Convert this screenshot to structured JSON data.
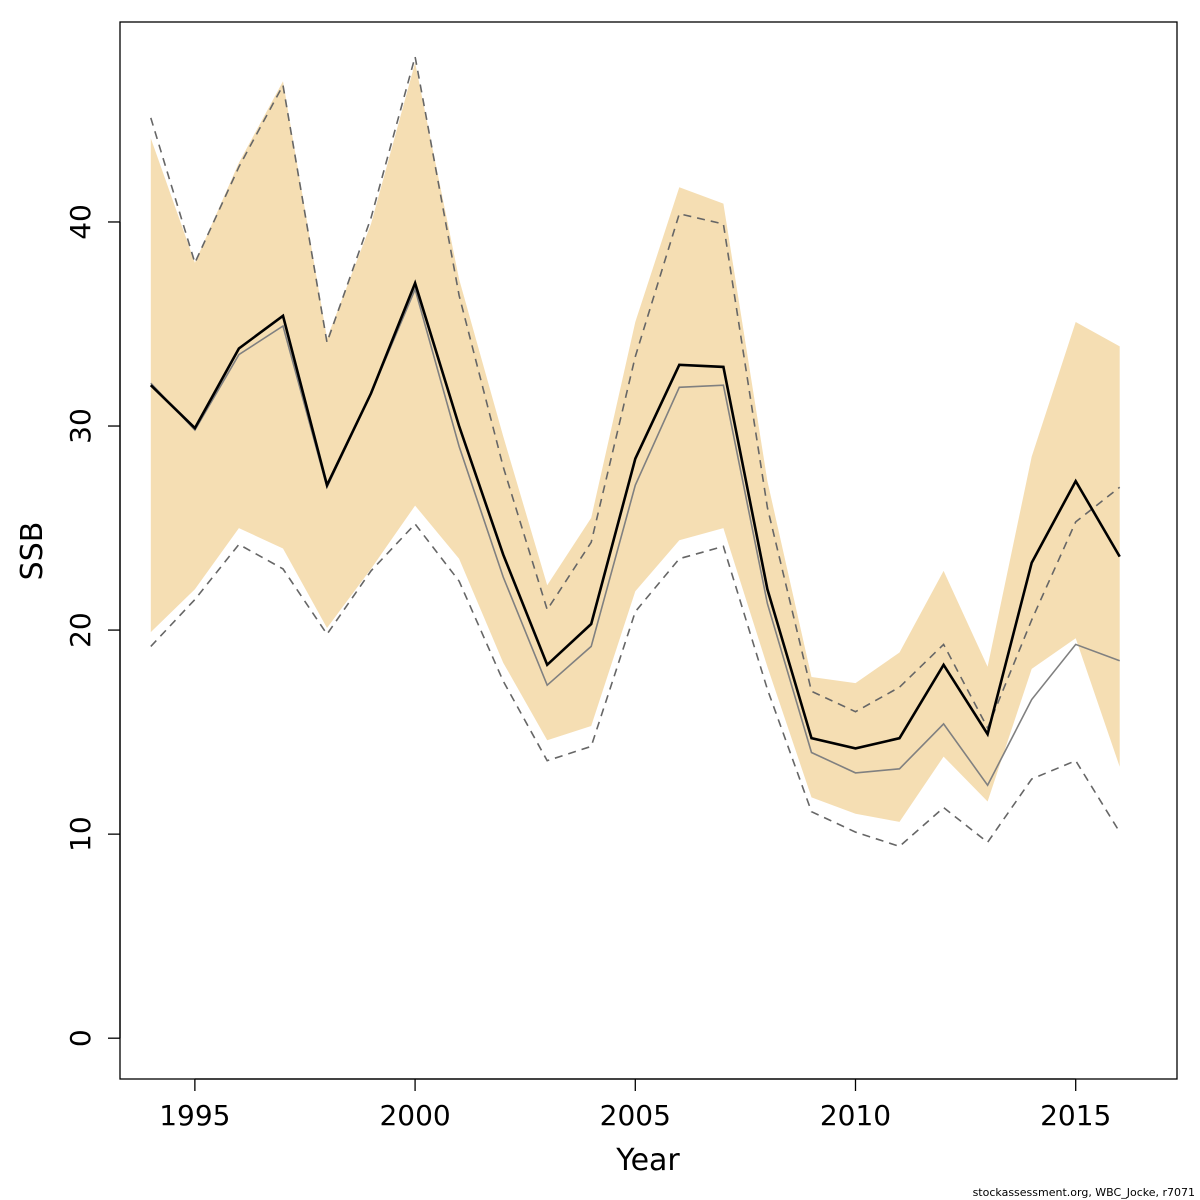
{
  "chart_data": {
    "type": "line",
    "xlabel": "Year",
    "ylabel": "SSB",
    "xlim": [
      1993.3,
      2017.3
    ],
    "ylim": [
      -2,
      49.8
    ],
    "x_ticks": [
      1995,
      2000,
      2005,
      2010,
      2015
    ],
    "y_ticks": [
      0,
      10,
      20,
      30,
      40
    ],
    "grid": false,
    "legend": "none",
    "x": [
      1994,
      1995,
      1996,
      1997,
      1998,
      1999,
      2000,
      2001,
      2002,
      2003,
      2004,
      2005,
      2006,
      2007,
      2008,
      2009,
      2010,
      2011,
      2012,
      2013,
      2014,
      2015,
      2016
    ],
    "band": {
      "color": "#f5deb3",
      "lower": [
        19.9,
        22.0,
        25.0,
        24.0,
        20.1,
        23.0,
        26.1,
        23.5,
        18.4,
        14.6,
        15.3,
        21.9,
        24.4,
        25.0,
        18.2,
        11.8,
        11.0,
        10.6,
        13.8,
        11.6,
        18.1,
        19.6,
        13.3
      ],
      "upper": [
        44.1,
        38.0,
        42.9,
        46.9,
        34.3,
        39.9,
        47.8,
        37.2,
        29.5,
        22.2,
        25.5,
        35.1,
        41.7,
        40.9,
        27.3,
        17.7,
        17.4,
        18.9,
        22.9,
        18.2,
        28.5,
        35.1,
        33.9
      ]
    },
    "series": [
      {
        "values": [
          32.0,
          29.9,
          33.8,
          35.4,
          27.1,
          31.6,
          37.0,
          30.0,
          23.7,
          18.3,
          20.3,
          28.4,
          33.0,
          32.9,
          22.0,
          14.7,
          14.2,
          14.7,
          18.3,
          14.9,
          23.3,
          27.3,
          23.6
        ],
        "color": "#000000",
        "style": "solid",
        "width": 2.6
      },
      {
        "values": [
          32.1,
          29.8,
          33.5,
          34.9,
          27.0,
          31.6,
          36.7,
          29.0,
          22.6,
          17.3,
          19.2,
          27.1,
          31.9,
          32.0,
          21.3,
          14.0,
          13.0,
          13.2,
          15.4,
          12.4,
          16.6,
          19.3,
          18.5
        ],
        "color": "#808080",
        "style": "solid",
        "width": 1.6
      },
      {
        "values": [
          45.1,
          38.0,
          42.7,
          46.7,
          34.1,
          40.2,
          48.1,
          36.4,
          28.0,
          21.0,
          24.3,
          33.4,
          40.4,
          39.9,
          26.0,
          17.0,
          16.0,
          17.2,
          19.3,
          15.2,
          20.5,
          25.3,
          27.0
        ],
        "color": "#666666",
        "style": "dashed",
        "width": 1.6
      },
      {
        "values": [
          19.2,
          21.5,
          24.2,
          23.0,
          19.8,
          22.9,
          25.2,
          22.4,
          17.5,
          13.6,
          14.3,
          20.9,
          23.5,
          24.1,
          17.1,
          11.1,
          10.1,
          9.4,
          11.3,
          9.6,
          12.7,
          13.6,
          10.1
        ],
        "color": "#666666",
        "style": "dashed",
        "width": 1.6
      }
    ]
  },
  "footer": {
    "note": "stockassessment.org, WBC_Jocke, r7071"
  }
}
